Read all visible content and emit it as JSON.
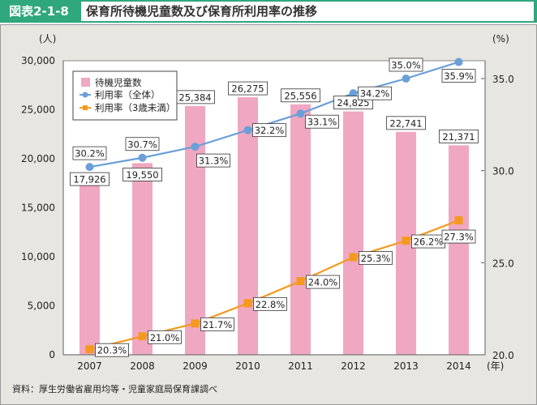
{
  "header": {
    "tag": "図表2-1-8",
    "title": "保育所待機児童数及び保育所利用率の推移",
    "accent_color": "#2fa87d"
  },
  "source": "資料：厚生労働省雇用均等・児童家庭局保育課調べ",
  "chart_data": {
    "type": "bar",
    "title": "保育所待機児童数及び保育所利用率の推移",
    "categories": [
      "2007",
      "2008",
      "2009",
      "2010",
      "2011",
      "2012",
      "2013",
      "2014"
    ],
    "xlabel": "(年)",
    "ylabel_left": "(人)",
    "ylabel_right": "(%)",
    "ylim_left": [
      0,
      30000
    ],
    "yticks_left": [
      "0",
      "5,000",
      "10,000",
      "15,000",
      "20,000",
      "25,000",
      "30,000"
    ],
    "ylim_right": [
      20.0,
      36.0
    ],
    "yticks_right": [
      "20.0",
      "25.0",
      "30.0",
      "35.0"
    ],
    "legend_position": "top-left",
    "grid": false,
    "series": [
      {
        "name": "待機児童数",
        "type": "bar",
        "axis": "left",
        "color": "#f0a7c1",
        "values": [
          17926,
          19550,
          25384,
          26275,
          25556,
          24825,
          22741,
          21371
        ],
        "labels": [
          "17,926",
          "19,550",
          "25,384",
          "26,275",
          "25,556",
          "24,825",
          "22,741",
          "21,371"
        ]
      },
      {
        "name": "利用率（全体）",
        "type": "line",
        "axis": "right",
        "color": "#6a9fd8",
        "marker": "circle",
        "values": [
          30.2,
          30.7,
          31.3,
          32.2,
          33.1,
          34.2,
          35.0,
          35.9
        ],
        "labels": [
          "30.2%",
          "30.7%",
          "31.3%",
          "32.2%",
          "33.1%",
          "34.2%",
          "35.0%",
          "35.9%"
        ]
      },
      {
        "name": "利用率（3歳未満）",
        "type": "line",
        "axis": "right",
        "color": "#f39a1e",
        "marker": "square",
        "values": [
          20.3,
          21.0,
          21.7,
          22.8,
          24.0,
          25.3,
          26.2,
          27.3
        ],
        "labels": [
          "20.3%",
          "21.0%",
          "21.7%",
          "22.8%",
          "24.0%",
          "25.3%",
          "26.2%",
          "27.3%"
        ]
      }
    ]
  }
}
